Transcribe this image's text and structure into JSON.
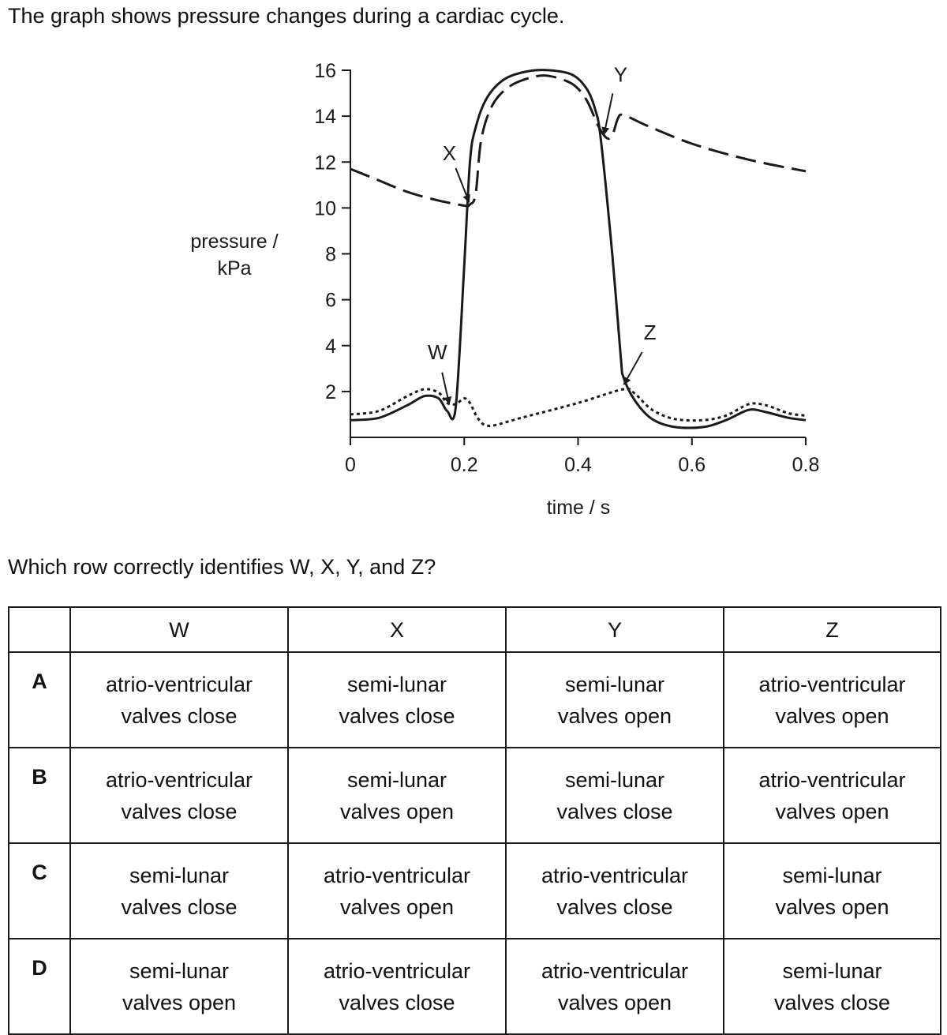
{
  "intro": "The graph shows pressure changes during a cardiac cycle.",
  "question": "Which row correctly identifies W, X, Y, and Z?",
  "chart_data": {
    "type": "line",
    "xlabel": "time / s",
    "ylabel_lines": [
      "pressure /",
      "kPa"
    ],
    "xlim": [
      0,
      0.8
    ],
    "ylim": [
      0,
      16
    ],
    "x_ticks": [
      "0",
      "0.2",
      "0.4",
      "0.6",
      "0.8"
    ],
    "y_ticks": [
      "2",
      "4",
      "6",
      "8",
      "10",
      "12",
      "14",
      "16"
    ],
    "grid": false,
    "legend": "none",
    "series": [
      {
        "style": "solid",
        "points": [
          [
            0.0,
            0.75
          ],
          [
            0.05,
            0.85
          ],
          [
            0.1,
            1.4
          ],
          [
            0.13,
            1.8
          ],
          [
            0.155,
            1.7
          ],
          [
            0.17,
            1.15
          ],
          [
            0.185,
            1.3
          ],
          [
            0.2,
            7.5
          ],
          [
            0.21,
            12.0
          ],
          [
            0.22,
            13.5
          ],
          [
            0.24,
            14.8
          ],
          [
            0.27,
            15.6
          ],
          [
            0.31,
            15.95
          ],
          [
            0.35,
            16.0
          ],
          [
            0.39,
            15.8
          ],
          [
            0.415,
            15.2
          ],
          [
            0.43,
            14.3
          ],
          [
            0.44,
            13.0
          ],
          [
            0.46,
            8.0
          ],
          [
            0.475,
            3.5
          ],
          [
            0.48,
            2.6
          ],
          [
            0.5,
            1.6
          ],
          [
            0.53,
            0.8
          ],
          [
            0.57,
            0.45
          ],
          [
            0.62,
            0.45
          ],
          [
            0.66,
            0.75
          ],
          [
            0.7,
            1.2
          ],
          [
            0.73,
            1.1
          ],
          [
            0.77,
            0.85
          ],
          [
            0.8,
            0.75
          ]
        ]
      },
      {
        "style": "dashed",
        "points": [
          [
            0.0,
            11.7
          ],
          [
            0.05,
            11.2
          ],
          [
            0.1,
            10.7
          ],
          [
            0.15,
            10.35
          ],
          [
            0.2,
            10.1
          ],
          [
            0.21,
            10.15
          ],
          [
            0.22,
            10.6
          ],
          [
            0.23,
            13.0
          ],
          [
            0.25,
            14.5
          ],
          [
            0.28,
            15.3
          ],
          [
            0.32,
            15.7
          ],
          [
            0.35,
            15.75
          ],
          [
            0.39,
            15.4
          ],
          [
            0.415,
            14.7
          ],
          [
            0.435,
            13.6
          ],
          [
            0.45,
            13.05
          ],
          [
            0.46,
            13.15
          ],
          [
            0.47,
            13.9
          ],
          [
            0.48,
            14.05
          ],
          [
            0.52,
            13.6
          ],
          [
            0.6,
            12.8
          ],
          [
            0.7,
            12.1
          ],
          [
            0.8,
            11.6
          ]
        ]
      },
      {
        "style": "dotted",
        "points": [
          [
            0.0,
            1.0
          ],
          [
            0.05,
            1.15
          ],
          [
            0.1,
            1.8
          ],
          [
            0.13,
            2.1
          ],
          [
            0.155,
            1.95
          ],
          [
            0.17,
            1.5
          ],
          [
            0.185,
            1.45
          ],
          [
            0.2,
            1.7
          ],
          [
            0.21,
            1.5
          ],
          [
            0.225,
            0.8
          ],
          [
            0.245,
            0.5
          ],
          [
            0.3,
            0.85
          ],
          [
            0.4,
            1.5
          ],
          [
            0.48,
            2.1
          ],
          [
            0.5,
            1.9
          ],
          [
            0.53,
            1.2
          ],
          [
            0.57,
            0.8
          ],
          [
            0.62,
            0.75
          ],
          [
            0.66,
            0.95
          ],
          [
            0.7,
            1.45
          ],
          [
            0.73,
            1.4
          ],
          [
            0.77,
            1.05
          ],
          [
            0.8,
            0.95
          ]
        ]
      }
    ],
    "annotations": [
      {
        "label": "W",
        "x": 0.175,
        "y": 1.35
      },
      {
        "label": "X",
        "x": 0.21,
        "y": 10.15
      },
      {
        "label": "Y",
        "x": 0.447,
        "y": 13.1
      },
      {
        "label": "Z",
        "x": 0.482,
        "y": 2.2
      }
    ]
  },
  "table": {
    "headers": [
      "",
      "W",
      "X",
      "Y",
      "Z"
    ],
    "rows": [
      {
        "option": "A",
        "cells": [
          [
            "atrio-ventricular",
            "valves close"
          ],
          [
            "semi-lunar",
            "valves close"
          ],
          [
            "semi-lunar",
            "valves open"
          ],
          [
            "atrio-ventricular",
            "valves open"
          ]
        ]
      },
      {
        "option": "B",
        "cells": [
          [
            "atrio-ventricular",
            "valves close"
          ],
          [
            "semi-lunar",
            "valves open"
          ],
          [
            "semi-lunar",
            "valves close"
          ],
          [
            "atrio-ventricular",
            "valves open"
          ]
        ]
      },
      {
        "option": "C",
        "cells": [
          [
            "semi-lunar",
            "valves close"
          ],
          [
            "atrio-ventricular",
            "valves open"
          ],
          [
            "atrio-ventricular",
            "valves close"
          ],
          [
            "semi-lunar",
            "valves open"
          ]
        ]
      },
      {
        "option": "D",
        "cells": [
          [
            "semi-lunar",
            "valves open"
          ],
          [
            "atrio-ventricular",
            "valves close"
          ],
          [
            "atrio-ventricular",
            "valves open"
          ],
          [
            "semi-lunar",
            "valves close"
          ]
        ]
      }
    ]
  }
}
